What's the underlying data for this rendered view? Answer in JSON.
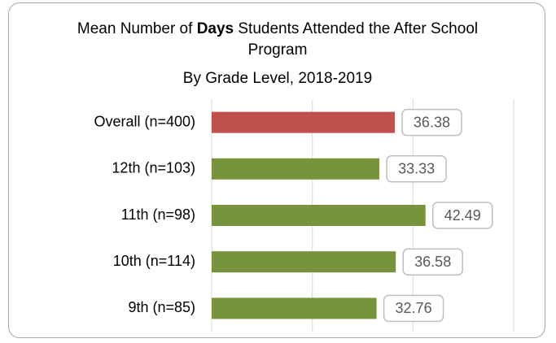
{
  "chart_data": {
    "type": "barh",
    "title": [
      "Mean Number of ",
      "Days",
      " Students Attended the After School Program"
    ],
    "subtitle": "By Grade Level, 2018-2019",
    "categories": [
      "Overall (n=400)",
      "12th (n=103)",
      "11th (n=98)",
      "10th (n=114)",
      "9th (n=85)"
    ],
    "values": [
      36.38,
      33.33,
      42.49,
      36.58,
      32.76
    ],
    "value_labels": [
      "36.38",
      "33.33",
      "42.49",
      "36.58",
      "32.76"
    ],
    "colors": [
      "#c0504d",
      "#77933c",
      "#77933c",
      "#77933c",
      "#77933c"
    ],
    "xlim": [
      0,
      60
    ],
    "xticks": [
      0,
      20,
      40,
      60
    ],
    "grid": true
  }
}
